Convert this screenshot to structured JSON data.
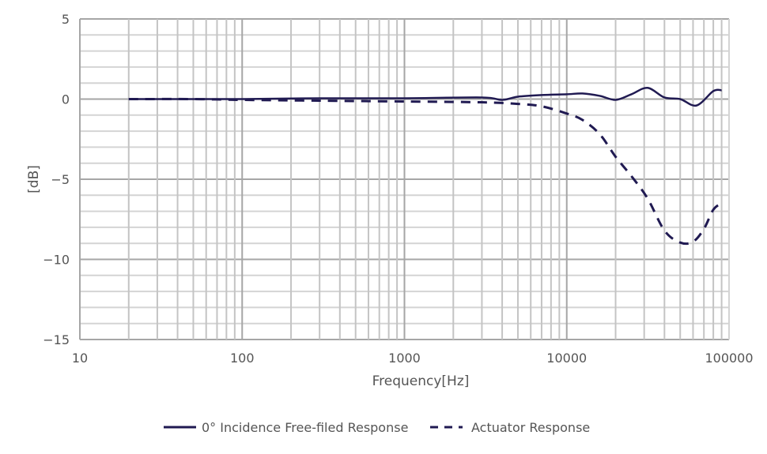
{
  "chart_data": {
    "type": "line",
    "title": "",
    "xlabel": "Frequency[Hz]",
    "ylabel": "[dB]",
    "xscale": "log",
    "xlim": [
      10,
      100000
    ],
    "ylim": [
      -15,
      5
    ],
    "xticks": [
      "10",
      "100",
      "1000",
      "10000",
      "100000"
    ],
    "yticks": [
      "5",
      "0",
      "-5",
      "-10",
      "-15"
    ],
    "grid": true,
    "legend_position": "bottom",
    "line_color": "#201a52",
    "series": [
      {
        "name": "0° Incidence Free-filed Response",
        "style": "solid",
        "x": [
          20,
          50,
          100,
          300,
          1000,
          3000,
          4000,
          5000,
          7000,
          10000,
          12500,
          16000,
          20000,
          25000,
          31500,
          40000,
          50000,
          63000,
          80000,
          90000
        ],
        "y": [
          0,
          0,
          0,
          0.05,
          0.05,
          0.1,
          -0.05,
          0.15,
          0.25,
          0.3,
          0.35,
          0.2,
          -0.05,
          0.3,
          0.7,
          0.1,
          0,
          -0.4,
          0.5,
          0.55
        ]
      },
      {
        "name": "Actuator Response",
        "style": "dashed",
        "x": [
          20,
          50,
          100,
          300,
          1000,
          3000,
          5000,
          7000,
          10000,
          12500,
          16000,
          20000,
          25000,
          31500,
          40000,
          50000,
          60000,
          70000,
          80000,
          90000
        ],
        "y": [
          0,
          0,
          -0.05,
          -0.1,
          -0.15,
          -0.2,
          -0.3,
          -0.45,
          -0.9,
          -1.3,
          -2.2,
          -3.6,
          -4.8,
          -6.2,
          -8.2,
          -8.95,
          -8.9,
          -8.1,
          -6.9,
          -6.5
        ]
      }
    ]
  }
}
